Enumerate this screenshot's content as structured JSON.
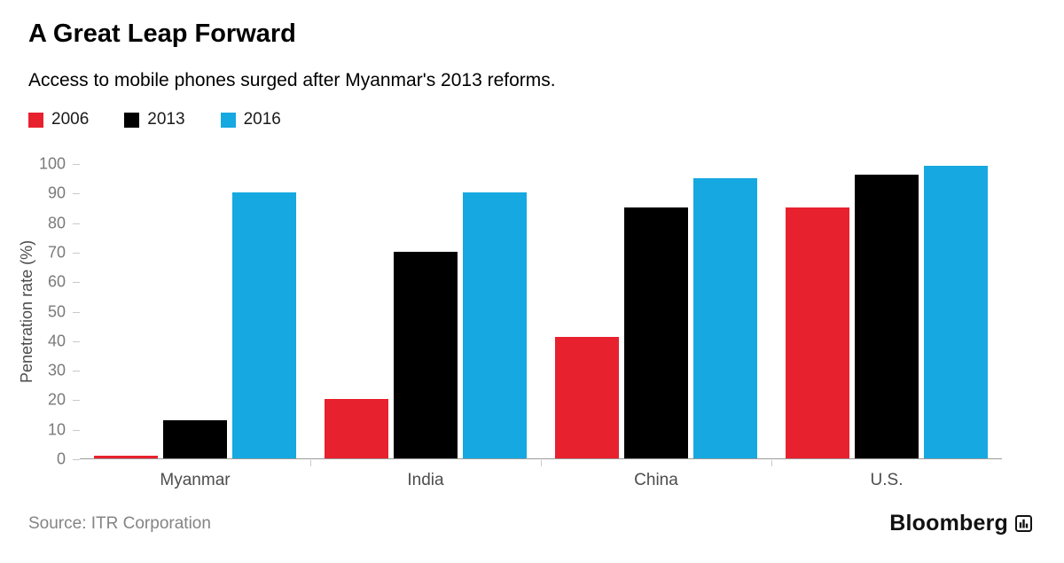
{
  "header": {
    "title": "A Great Leap Forward",
    "subtitle": "Access to mobile phones surged after Myanmar's 2013 reforms."
  },
  "legend": [
    {
      "label": "2006",
      "color": "#e8212e"
    },
    {
      "label": "2013",
      "color": "#000000"
    },
    {
      "label": "2016",
      "color": "#16a8e0"
    }
  ],
  "chart_data": {
    "type": "bar",
    "title": "A Great Leap Forward",
    "subtitle": "Access to mobile phones surged after Myanmar's 2013 reforms.",
    "categories": [
      "Myanmar",
      "India",
      "China",
      "U.S."
    ],
    "series": [
      {
        "name": "2006",
        "color": "#e8212e",
        "values": [
          1,
          20,
          41,
          85
        ]
      },
      {
        "name": "2013",
        "color": "#000000",
        "values": [
          13,
          70,
          85,
          96
        ]
      },
      {
        "name": "2016",
        "color": "#16a8e0",
        "values": [
          90,
          90,
          95,
          99
        ]
      }
    ],
    "xlabel": "",
    "ylabel": "Penetration rate (%)",
    "ylim": [
      0,
      100
    ],
    "yticks": [
      0,
      10,
      20,
      30,
      40,
      50,
      60,
      70,
      80,
      90,
      100
    ],
    "grid": "off",
    "legend_position": "top-left"
  },
  "footer": {
    "source": "Source: ITR Corporation",
    "brand": "Bloomberg"
  }
}
